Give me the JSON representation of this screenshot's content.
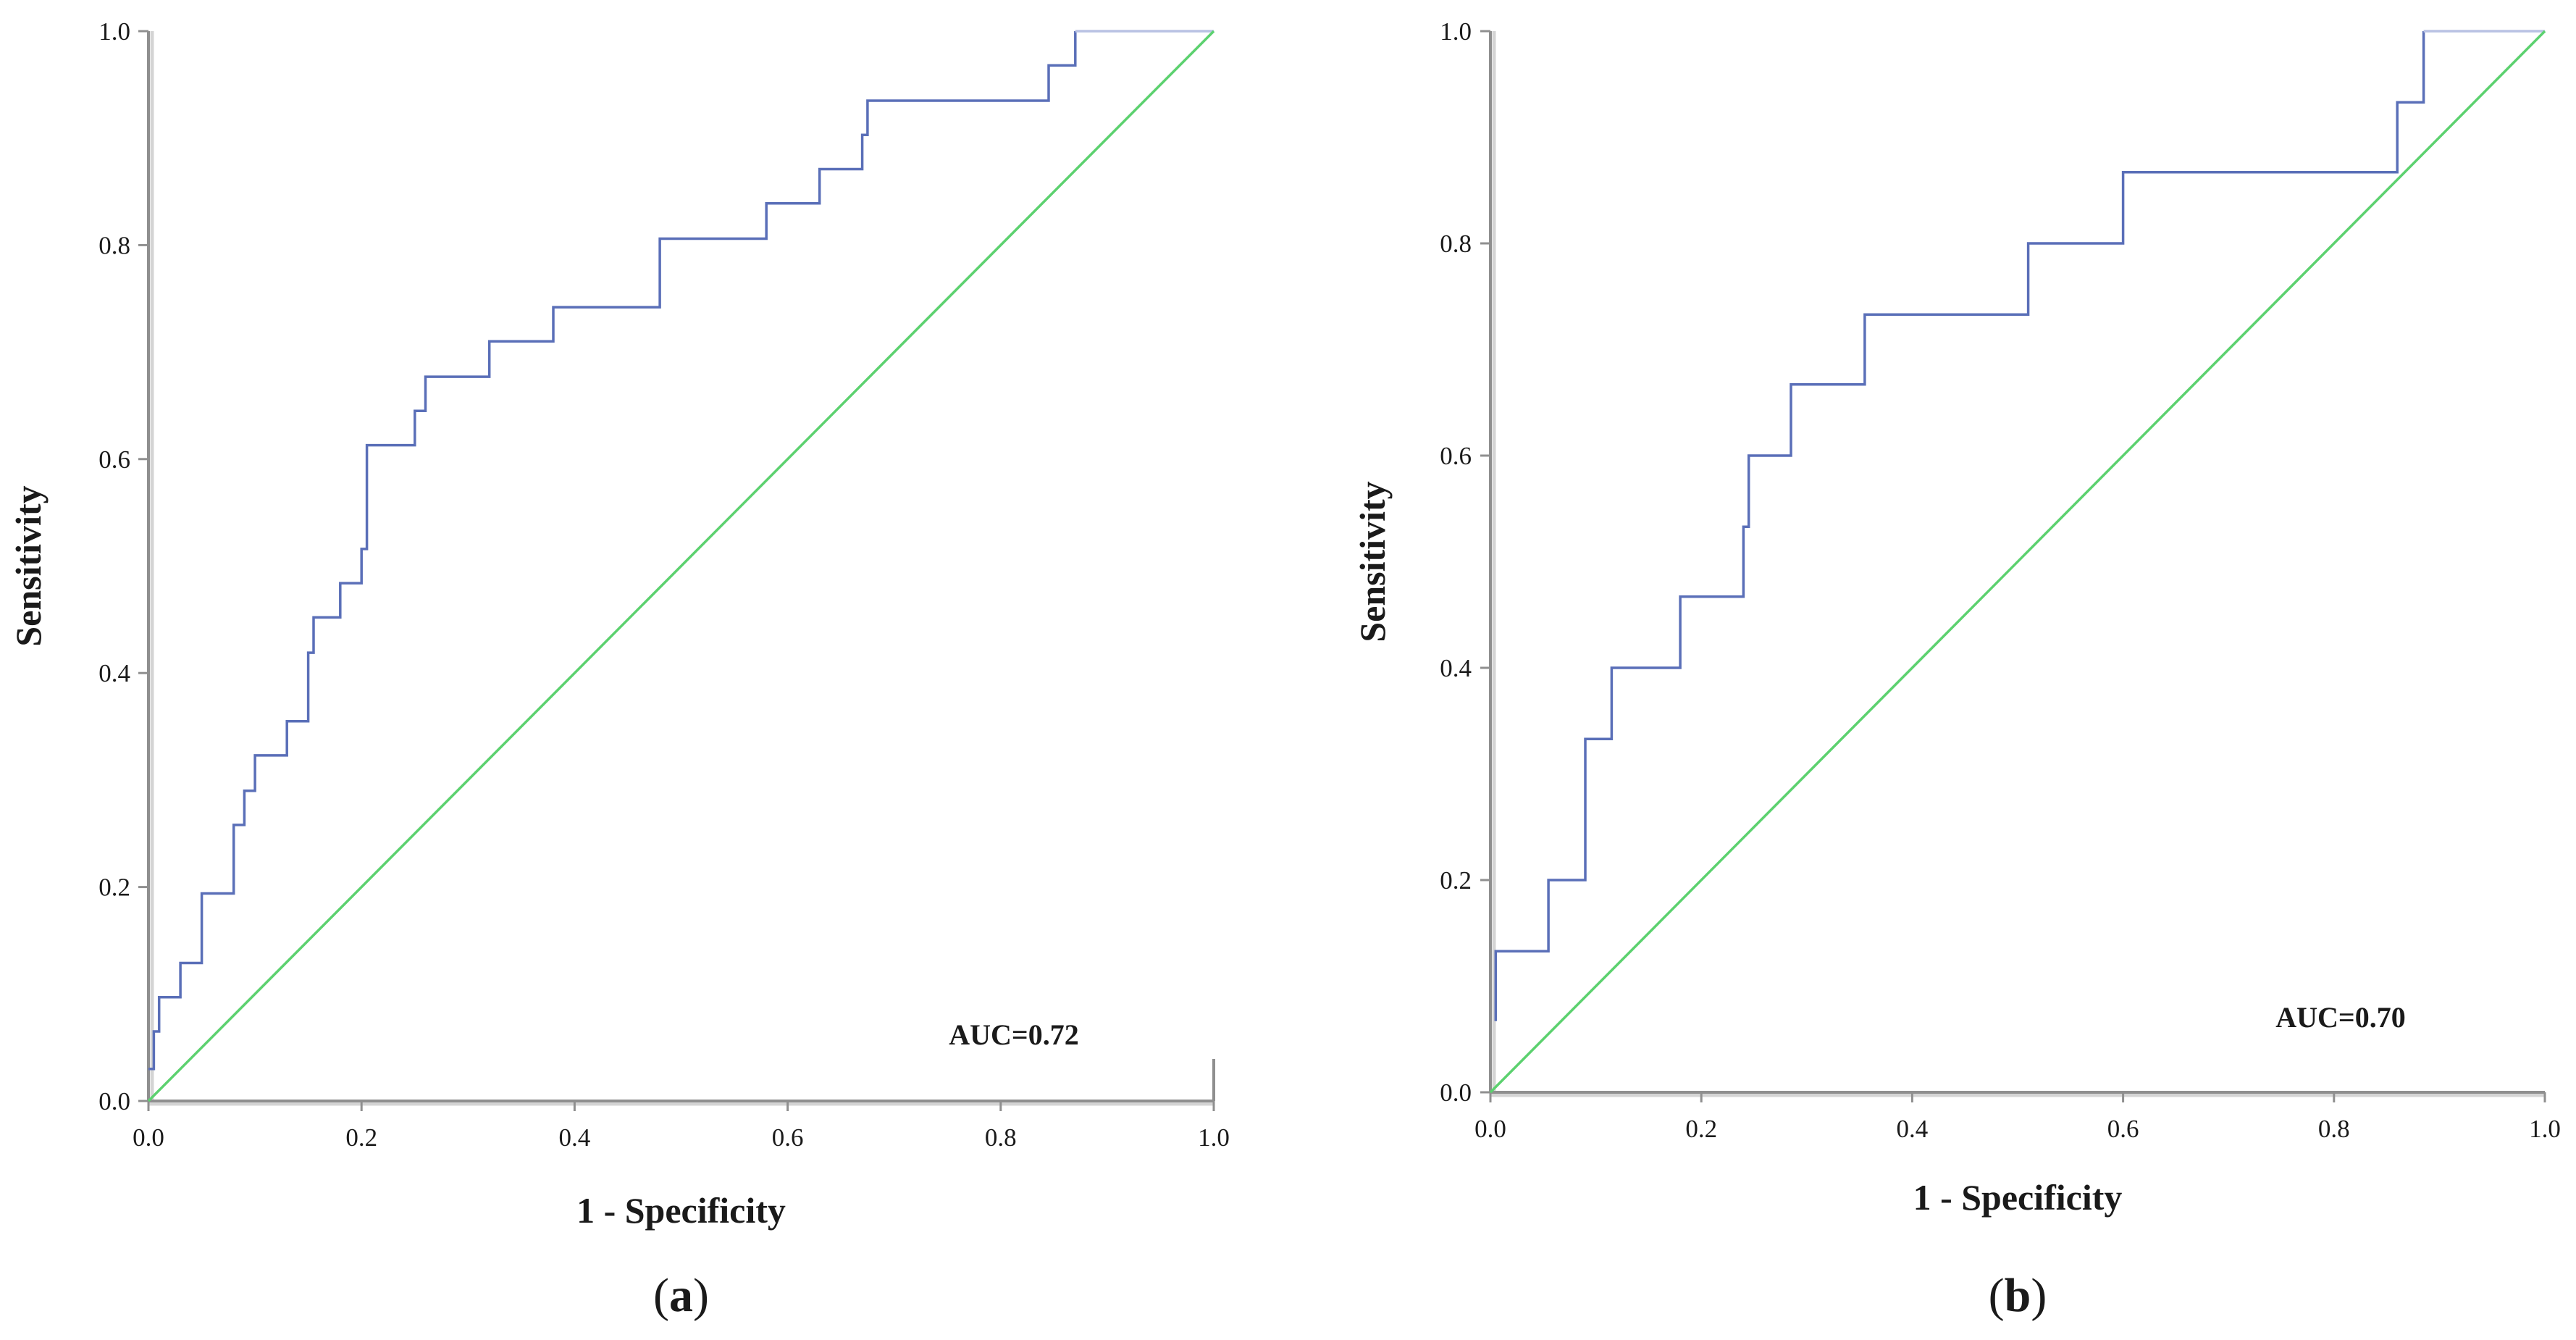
{
  "chart_data": [
    {
      "type": "line",
      "panel_label_open": "(",
      "panel_label_letter": "a",
      "panel_label_close": ")",
      "xlabel": "1 - Specificity",
      "ylabel": "Sensitivity",
      "xlim": [
        0,
        1
      ],
      "ylim": [
        0,
        1
      ],
      "x_ticks": [
        "0.0",
        "0.2",
        "0.4",
        "0.6",
        "0.8",
        "1.0"
      ],
      "y_ticks": [
        "0.0",
        "0.2",
        "0.4",
        "0.6",
        "0.8",
        "1.0"
      ],
      "annotation": "AUC=0.72",
      "grid": false,
      "colors": {
        "roc": "#5a6fb8",
        "roc_tail": "#b9c2e3",
        "reference": "#5cd16f"
      },
      "series": [
        {
          "role": "roc",
          "x": [
            0,
            0.005,
            0.005,
            0.01,
            0.01,
            0.03,
            0.03,
            0.05,
            0.05,
            0.08,
            0.08,
            0.09,
            0.09,
            0.1,
            0.1,
            0.13,
            0.13,
            0.15,
            0.15,
            0.155,
            0.155,
            0.18,
            0.18,
            0.2,
            0.2,
            0.205,
            0.205,
            0.25,
            0.25,
            0.26,
            0.26,
            0.32,
            0.32,
            0.38,
            0.38,
            0.48,
            0.48,
            0.58,
            0.58,
            0.63,
            0.63,
            0.67,
            0.67,
            0.675,
            0.675,
            0.845,
            0.845,
            0.87,
            0.87
          ],
          "y": [
            0.03,
            0.03,
            0.065,
            0.065,
            0.097,
            0.097,
            0.129,
            0.129,
            0.194,
            0.194,
            0.258,
            0.258,
            0.29,
            0.29,
            0.323,
            0.323,
            0.355,
            0.355,
            0.419,
            0.419,
            0.452,
            0.452,
            0.484,
            0.484,
            0.516,
            0.516,
            0.613,
            0.613,
            0.645,
            0.645,
            0.677,
            0.677,
            0.71,
            0.71,
            0.742,
            0.742,
            0.806,
            0.806,
            0.839,
            0.839,
            0.871,
            0.871,
            0.903,
            0.903,
            0.935,
            0.935,
            0.968,
            0.968,
            1.0
          ]
        },
        {
          "role": "roc_tail",
          "x": [
            0.87,
            1.0
          ],
          "y": [
            1.0,
            1.0
          ]
        },
        {
          "role": "reference",
          "x": [
            0,
            1
          ],
          "y": [
            0,
            1
          ]
        }
      ]
    },
    {
      "type": "line",
      "panel_label_open": "(",
      "panel_label_letter": "b",
      "panel_label_close": ")",
      "xlabel": "1 - Specificity",
      "ylabel": "Sensitivity",
      "xlim": [
        0,
        1
      ],
      "ylim": [
        0,
        1
      ],
      "x_ticks": [
        "0.0",
        "0.2",
        "0.4",
        "0.6",
        "0.8",
        "1.0"
      ],
      "y_ticks": [
        "0.0",
        "0.2",
        "0.4",
        "0.6",
        "0.8",
        "1.0"
      ],
      "annotation": "AUC=0.70",
      "grid": false,
      "colors": {
        "roc": "#5a6fb8",
        "roc_tail": "#b9c2e3",
        "reference": "#5cd16f"
      },
      "series": [
        {
          "role": "roc",
          "x": [
            0.005,
            0.005,
            0.055,
            0.055,
            0.09,
            0.09,
            0.115,
            0.115,
            0.18,
            0.18,
            0.24,
            0.24,
            0.245,
            0.245,
            0.285,
            0.285,
            0.355,
            0.355,
            0.51,
            0.51,
            0.6,
            0.6,
            0.86,
            0.86,
            0.885,
            0.885
          ],
          "y": [
            0.067,
            0.133,
            0.133,
            0.2,
            0.2,
            0.333,
            0.333,
            0.4,
            0.4,
            0.467,
            0.467,
            0.533,
            0.533,
            0.6,
            0.6,
            0.667,
            0.667,
            0.733,
            0.733,
            0.8,
            0.8,
            0.867,
            0.867,
            0.933,
            0.933,
            1.0
          ]
        },
        {
          "role": "roc_tail",
          "x": [
            0.885,
            1.0
          ],
          "y": [
            1.0,
            1.0
          ]
        },
        {
          "role": "reference",
          "x": [
            0,
            1
          ],
          "y": [
            0,
            1
          ]
        }
      ]
    }
  ]
}
